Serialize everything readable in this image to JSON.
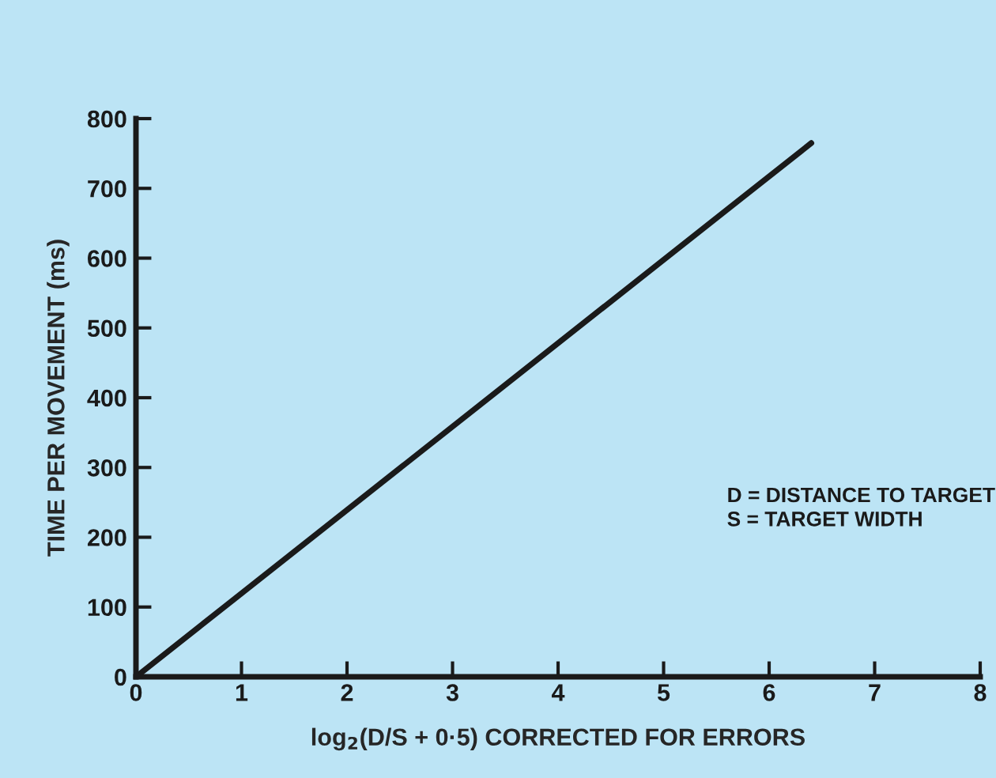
{
  "chart_data": {
    "type": "line",
    "x": [
      0,
      6.4
    ],
    "series": [
      {
        "color": "#1a1a1a",
        "values": [
          0,
          765
        ]
      }
    ],
    "xlabel": "log$_{2}$(D/S + 0·5) CORRECTED FOR ERRORS",
    "ylabel": "TIME PER MOVEMENT (ms)",
    "xlim": [
      0,
      8
    ],
    "xticks": [
      0,
      1,
      2,
      3,
      4,
      5,
      6,
      7,
      8
    ],
    "ylim": [
      0,
      800
    ],
    "yticks": [
      0,
      100,
      200,
      300,
      400,
      500,
      600,
      700,
      800
    ],
    "annotations": [
      "D = DISTANCE TO TARGET\nS = TARGET WIDTH"
    ],
    "grid": false,
    "legend": false,
    "marker": "none",
    "line_style": "solid"
  }
}
